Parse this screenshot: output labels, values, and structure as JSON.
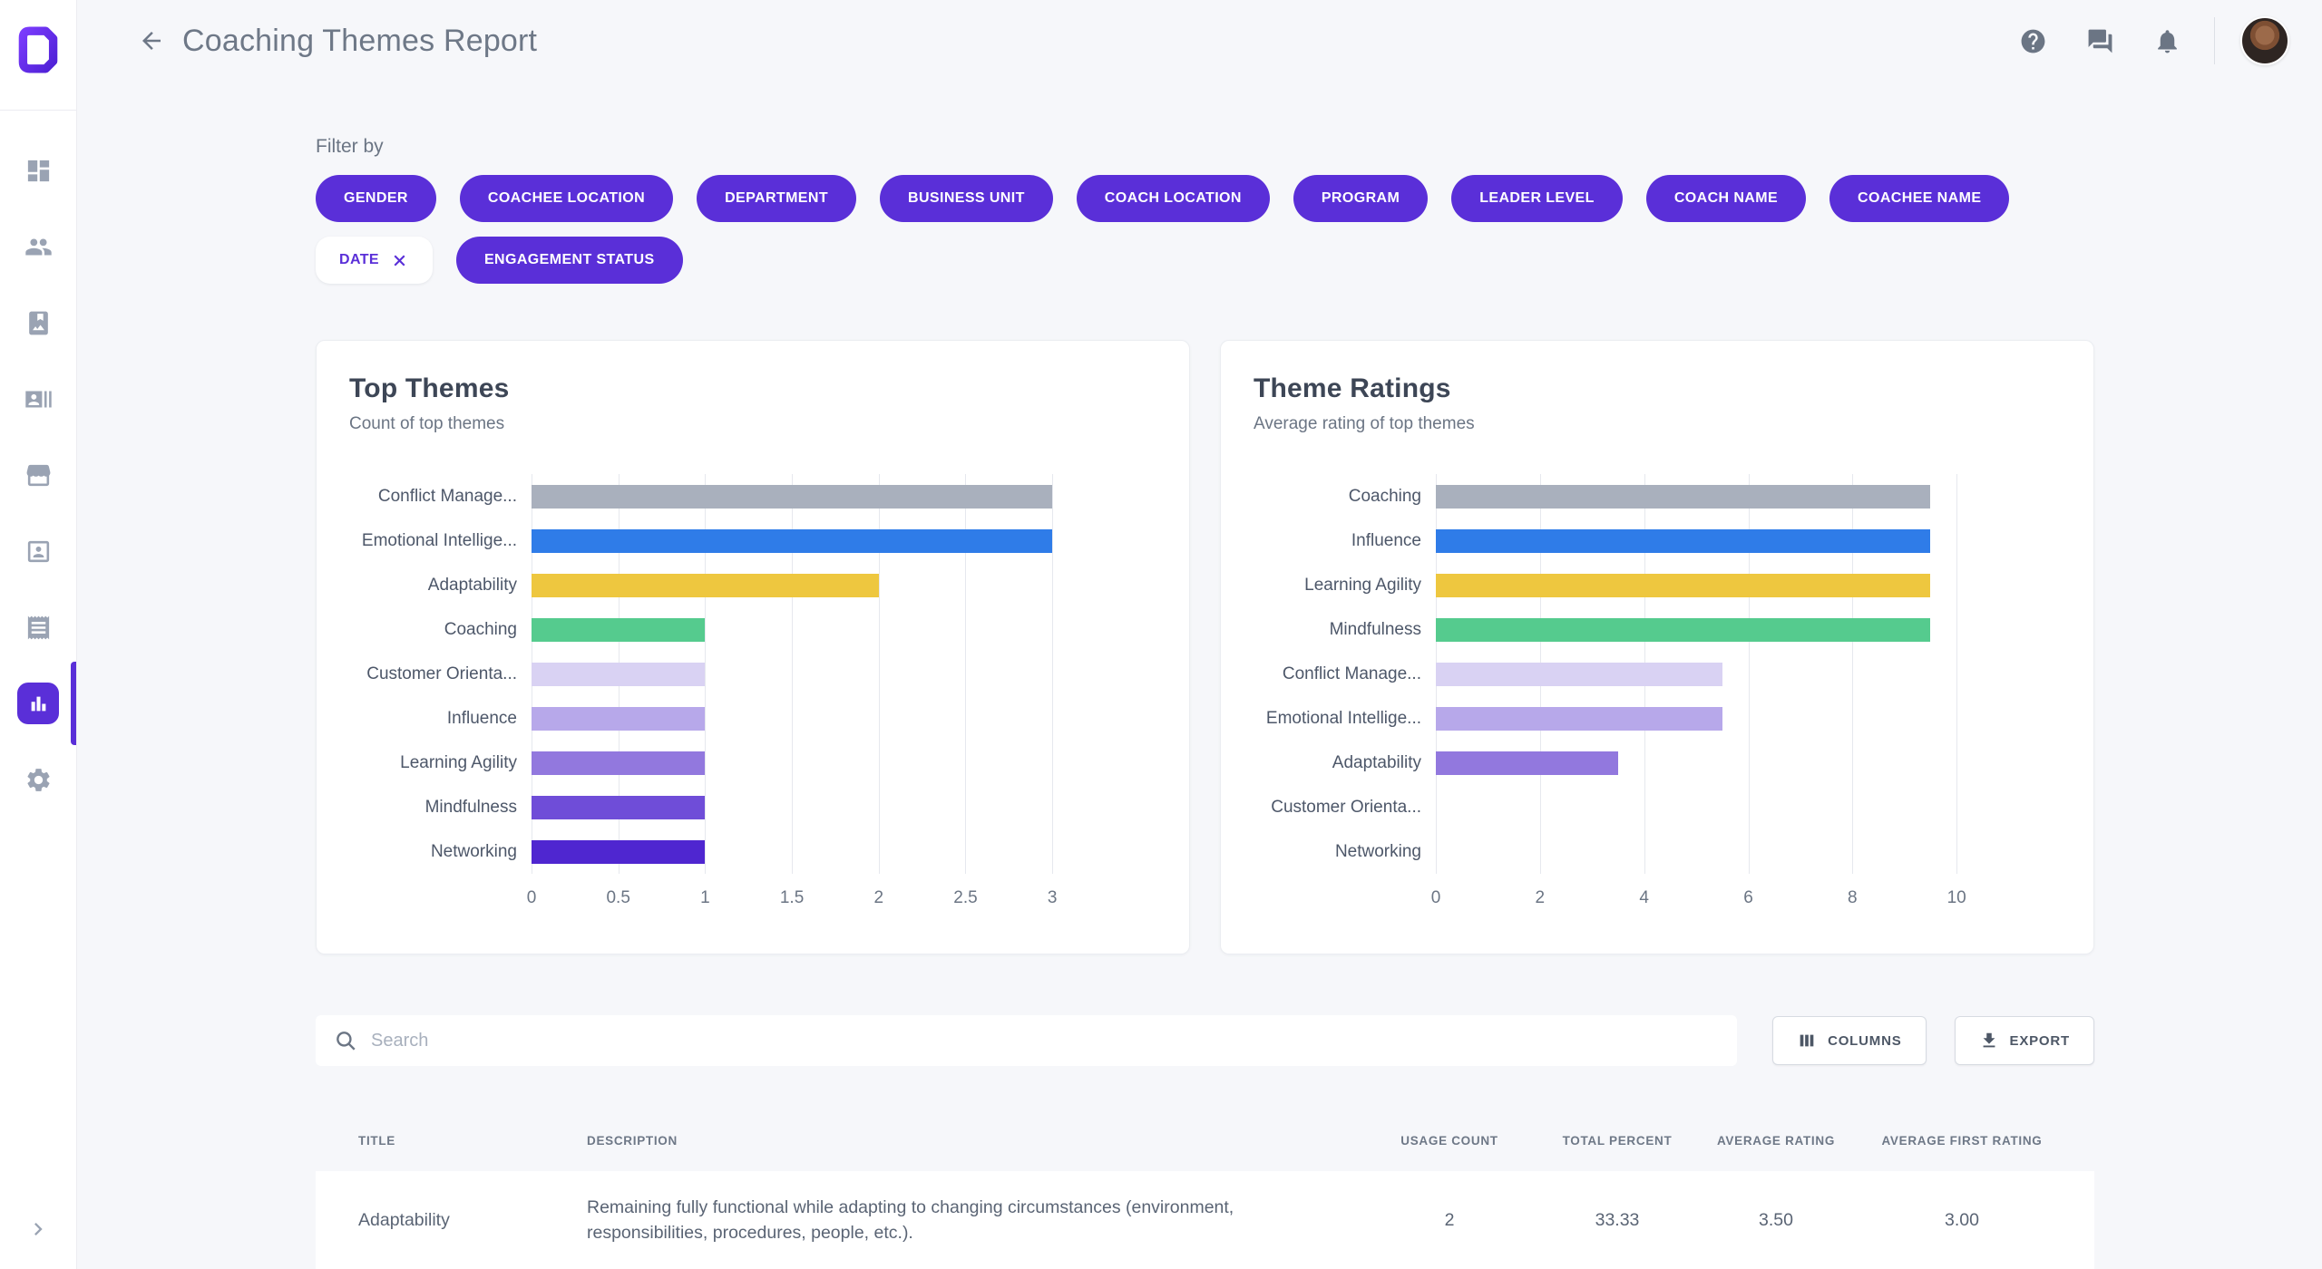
{
  "app": {
    "title": "Coaching Themes Report"
  },
  "colors": {
    "accent_purple": "#5a2fd8",
    "page_bg": "#f6f7fa",
    "grid_line": "#e6e8ee",
    "bar_gray": "#a9b0bd",
    "bar_blue": "#2f7ce8",
    "bar_yellow": "#eec73f",
    "bar_green": "#55cb8e"
  },
  "sidebar": {
    "items": [
      {
        "label": "dashboard",
        "icon": "dashboard-icon",
        "active": false
      },
      {
        "label": "people",
        "icon": "people-icon",
        "active": false
      },
      {
        "label": "media",
        "icon": "photo-album-icon",
        "active": false
      },
      {
        "label": "contacts",
        "icon": "recent-actors-icon",
        "active": false
      },
      {
        "label": "marketplace",
        "icon": "storefront-icon",
        "active": false
      },
      {
        "label": "profile-card",
        "icon": "portrait-icon",
        "active": false
      },
      {
        "label": "receipts",
        "icon": "receipt-icon",
        "active": false
      },
      {
        "label": "reports",
        "icon": "bar-chart-icon",
        "active": true
      },
      {
        "label": "settings",
        "icon": "gear-icon",
        "active": false
      }
    ],
    "collapse_icon": "chevron-right-icon"
  },
  "header": {
    "back_icon": "arrow-left-icon",
    "actions": [
      {
        "name": "help",
        "icon": "help-icon"
      },
      {
        "name": "messages",
        "icon": "chat-icon"
      },
      {
        "name": "notifications",
        "icon": "bell-icon"
      }
    ]
  },
  "filters": {
    "label": "Filter by",
    "chips": [
      {
        "label": "GENDER",
        "variant": "filled"
      },
      {
        "label": "COACHEE LOCATION",
        "variant": "filled"
      },
      {
        "label": "DEPARTMENT",
        "variant": "filled"
      },
      {
        "label": "BUSINESS UNIT",
        "variant": "filled"
      },
      {
        "label": "COACH LOCATION",
        "variant": "filled"
      },
      {
        "label": "PROGRAM",
        "variant": "filled"
      },
      {
        "label": "LEADER LEVEL",
        "variant": "filled"
      },
      {
        "label": "COACH NAME",
        "variant": "filled"
      },
      {
        "label": "COACHEE NAME",
        "variant": "filled"
      },
      {
        "label": "DATE",
        "variant": "outline",
        "removable": true
      },
      {
        "label": "ENGAGEMENT STATUS",
        "variant": "filled"
      }
    ]
  },
  "chart_data": [
    {
      "type": "bar",
      "orientation": "horizontal",
      "title": "Top Themes",
      "subtitle": "Count of top themes",
      "categories": [
        "Conflict Manage...",
        "Emotional Intellige...",
        "Adaptability",
        "Coaching",
        "Customer Orienta...",
        "Influence",
        "Learning Agility",
        "Mindfulness",
        "Networking"
      ],
      "values": [
        3,
        3,
        2,
        1,
        1,
        1,
        1,
        1,
        1
      ],
      "bar_colors": [
        "#a9b0bd",
        "#2f7ce8",
        "#eec73f",
        "#55cb8e",
        "#d9d2f3",
        "#b7a8ea",
        "#9278de",
        "#6f4dd8",
        "#4f26d0"
      ],
      "xticks": [
        0,
        0.5,
        1,
        1.5,
        2,
        2.5,
        3
      ],
      "xtick_labels": [
        "0",
        "0.5",
        "1",
        "1.5",
        "2",
        "2.5",
        "3"
      ],
      "xlim": [
        0,
        3.6
      ],
      "grid": true,
      "xlabel": "",
      "ylabel": ""
    },
    {
      "type": "bar",
      "orientation": "horizontal",
      "title": "Theme Ratings",
      "subtitle": "Average rating of top themes",
      "categories": [
        "Coaching",
        "Influence",
        "Learning Agility",
        "Mindfulness",
        "Conflict Manage...",
        "Emotional Intellige...",
        "Adaptability",
        "Customer Orienta...",
        "Networking"
      ],
      "values": [
        9.5,
        9.5,
        9.5,
        9.5,
        5.5,
        5.5,
        3.5,
        0,
        0
      ],
      "bar_colors": [
        "#a9b0bd",
        "#2f7ce8",
        "#eec73f",
        "#55cb8e",
        "#d9d2f3",
        "#b7a8ea",
        "#9278de",
        "#6f4dd8",
        "#4f26d0"
      ],
      "xticks": [
        0,
        2,
        4,
        6,
        8,
        10
      ],
      "xtick_labels": [
        "0",
        "2",
        "4",
        "6",
        "8",
        "10"
      ],
      "xlim": [
        0,
        12
      ],
      "grid": true,
      "xlabel": "",
      "ylabel": ""
    }
  ],
  "toolbar": {
    "search_placeholder": "Search",
    "columns_label": "COLUMNS",
    "export_label": "EXPORT",
    "search_icon": "search-icon",
    "columns_icon": "columns-icon",
    "export_icon": "download-icon"
  },
  "table": {
    "columns": [
      "TITLE",
      "DESCRIPTION",
      "USAGE COUNT",
      "TOTAL PERCENT",
      "AVERAGE RATING",
      "AVERAGE FIRST RATING"
    ],
    "rows": [
      {
        "title": "Adaptability",
        "description": "Remaining fully functional while adapting to changing circumstances (environment, responsibilities, procedures, people, etc.).",
        "usage_count": "2",
        "total_percent": "33.33",
        "average_rating": "3.50",
        "average_first_rating": "3.00"
      }
    ]
  }
}
